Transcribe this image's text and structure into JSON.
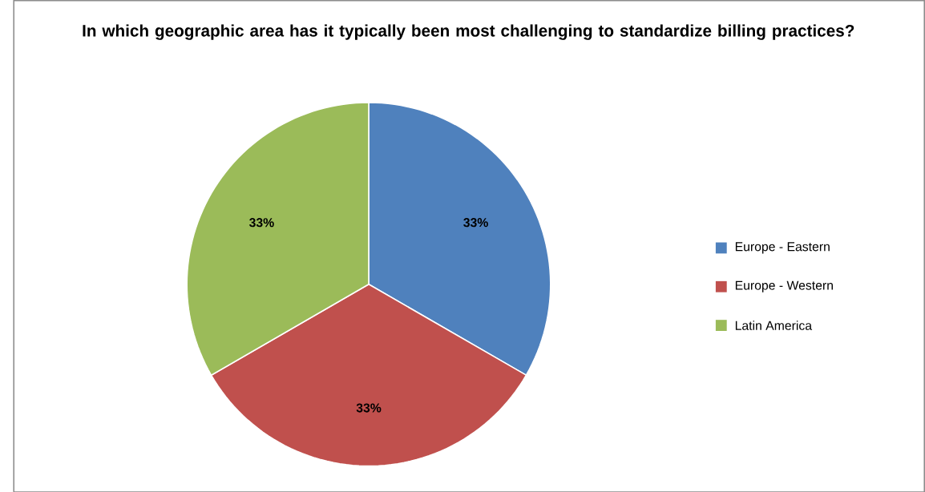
{
  "chart_data": {
    "type": "pie",
    "title": "In which geographic area has it typically been most challenging to standardize billing practices?",
    "categories": [
      "Europe - Eastern",
      "Europe - Western",
      "Latin America"
    ],
    "values": [
      33.33,
      33.33,
      33.34
    ],
    "value_labels": [
      "33%",
      "33%",
      "33%"
    ],
    "colors": [
      "#4f81bd",
      "#c0504d",
      "#9bbb59"
    ],
    "legend": "right"
  }
}
